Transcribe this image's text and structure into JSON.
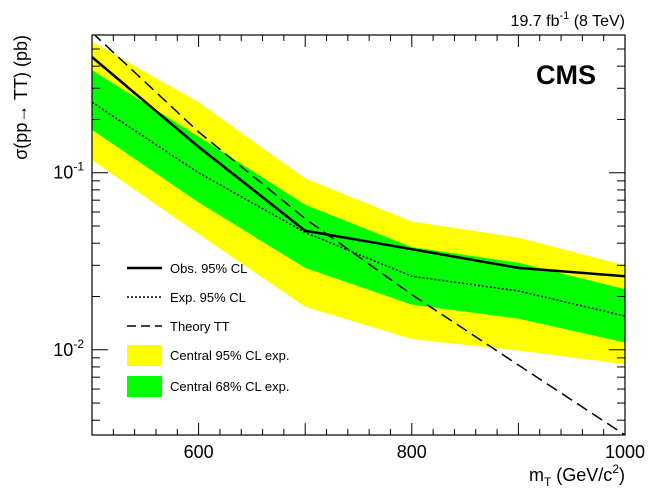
{
  "chart_data": {
    "type": "line",
    "title": "",
    "corner_label": {
      "lumi": "19.7 fb",
      "lumi_sup": "-1",
      "energy": " (8 TeV)"
    },
    "experiment_label": "CMS",
    "xlabel": {
      "main": "m",
      "sub": "T",
      "units_pre": " (GeV/c",
      "units_sup": "2",
      "units_post": ")"
    },
    "ylabel": "σ(pp→ TT) (pb)",
    "xlim": [
      500,
      1000
    ],
    "ylim": [
      0.0033,
      0.6
    ],
    "y_scale": "log",
    "x_ticks": [
      {
        "value": 600,
        "label": "600"
      },
      {
        "value": 800,
        "label": "800"
      },
      {
        "value": 1000,
        "label": "1000"
      }
    ],
    "y_ticks": [
      {
        "value": 0.1,
        "base": "10",
        "exp": "-1"
      },
      {
        "value": 0.01,
        "base": "10",
        "exp": "-2"
      }
    ],
    "bands": [
      {
        "name": "Central 95% CL exp.",
        "color": "#ffff00",
        "x": [
          500,
          600,
          700,
          800,
          900,
          1000
        ],
        "upper": [
          0.55,
          0.25,
          0.093,
          0.053,
          0.043,
          0.03
        ],
        "lower": [
          0.118,
          0.045,
          0.0175,
          0.0115,
          0.0099,
          0.0083
        ]
      },
      {
        "name": "Central 68% CL exp.",
        "color": "#00ff00",
        "x": [
          500,
          600,
          700,
          800,
          900,
          1000
        ],
        "upper": [
          0.38,
          0.16,
          0.066,
          0.038,
          0.031,
          0.022
        ],
        "lower": [
          0.175,
          0.068,
          0.029,
          0.018,
          0.015,
          0.011
        ]
      }
    ],
    "series": [
      {
        "name": "Obs. 95% CL",
        "style": "solid",
        "color": "#000000",
        "x": [
          500,
          600,
          700,
          800,
          900,
          1000
        ],
        "y": [
          0.45,
          0.14,
          0.047,
          0.037,
          0.029,
          0.026
        ]
      },
      {
        "name": "Exp. 95% CL",
        "style": "dotted",
        "color": "#000000",
        "x": [
          500,
          600,
          700,
          800,
          900,
          1000
        ],
        "y": [
          0.25,
          0.1,
          0.046,
          0.026,
          0.0215,
          0.0155
        ]
      },
      {
        "name": "Theory TT",
        "style": "dashed",
        "color": "#000000",
        "x": [
          500,
          600,
          700,
          800,
          900,
          1000
        ],
        "y": [
          0.62,
          0.17,
          0.055,
          0.0205,
          0.0082,
          0.0033
        ]
      }
    ],
    "legend": {
      "placement": "bottom-left",
      "entries": [
        {
          "label": "Obs. 95% CL",
          "kind": "solid"
        },
        {
          "label": "Exp. 95% CL",
          "kind": "dotted"
        },
        {
          "label": "Theory TT",
          "kind": "dashed"
        },
        {
          "label": "Central 95% CL exp.",
          "kind": "box",
          "color": "#ffff00"
        },
        {
          "label": "Central 68% CL exp.",
          "kind": "box",
          "color": "#00ff00"
        }
      ]
    },
    "grid": false
  }
}
